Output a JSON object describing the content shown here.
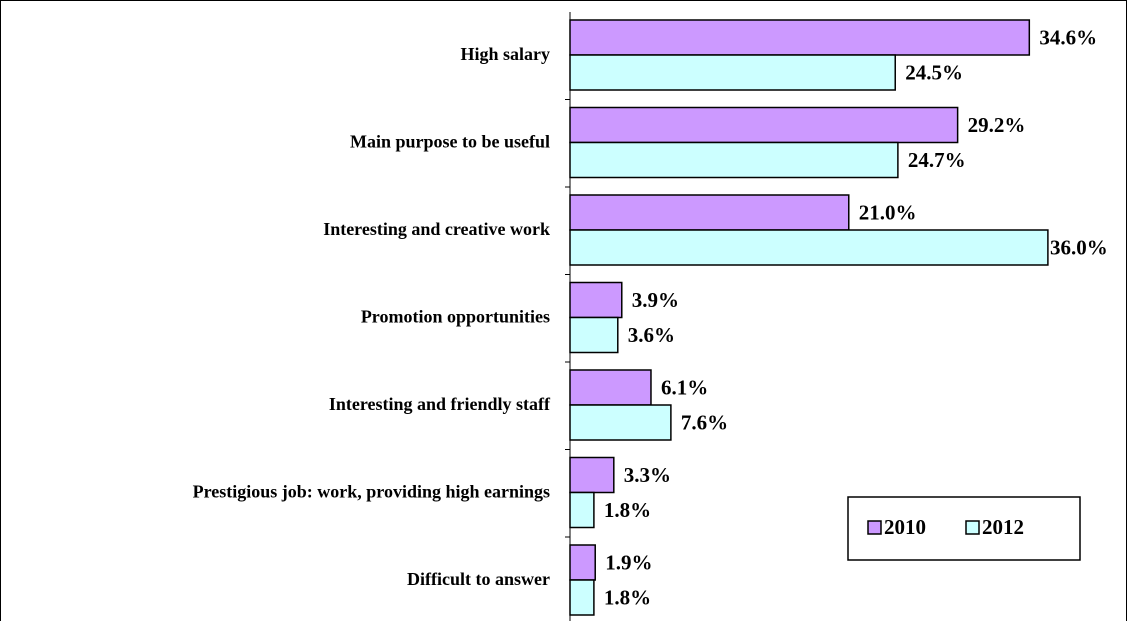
{
  "chart_data": {
    "type": "bar",
    "orientation": "horizontal",
    "categories": [
      "High salary",
      "Main purpose to be useful",
      "Interesting and creative work",
      "Promotion opportunities",
      "Interesting and friendly staff",
      "Prestigious job: work, providing high earnings",
      "Difficult to answer"
    ],
    "series": [
      {
        "name": "2010",
        "color": "#cc99ff",
        "values": [
          34.6,
          29.2,
          21.0,
          3.9,
          6.1,
          3.3,
          1.9
        ],
        "value_labels": [
          "34.6%",
          "29.2%",
          "21.0%",
          "3.9%",
          "6.1%",
          "3.3%",
          "1.9%"
        ]
      },
      {
        "name": "2012",
        "color": "#ccffff",
        "values": [
          24.5,
          24.7,
          36.0,
          3.6,
          7.6,
          1.8,
          1.8
        ],
        "value_labels": [
          "24.5%",
          "24.7%",
          "36.0%",
          "3.6%",
          "7.6%",
          "1.8%",
          "1.8%"
        ]
      }
    ],
    "xlim": [
      0,
      40
    ],
    "legend": "lower right"
  }
}
